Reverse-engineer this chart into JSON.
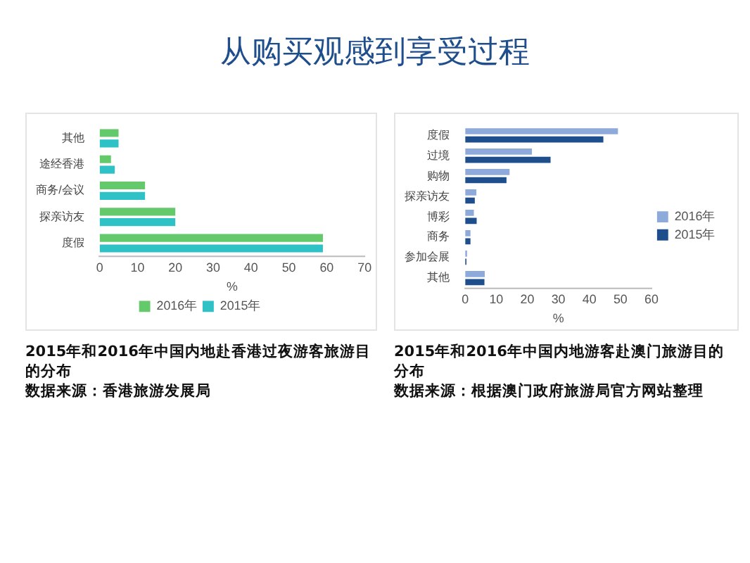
{
  "chart_data": [
    {
      "type": "bar",
      "orientation": "horizontal",
      "title": "从购买观感到享受过程",
      "subtitle": "2015年和2016年中国内地赴香港过夜游客旅游目的分布",
      "annotations": [
        "数据来源：香港旅游发展局"
      ],
      "xlabel": "%",
      "categories": [
        "其他",
        "途经香港",
        "商务/会议",
        "探亲访友",
        "度假"
      ],
      "series": [
        {
          "name": "2016年",
          "color": "#63c96a",
          "values": [
            5,
            3,
            12,
            20,
            59
          ]
        },
        {
          "name": "2015年",
          "color": "#2ec2c6",
          "values": [
            5,
            4,
            12,
            20,
            59
          ]
        }
      ],
      "xlim": [
        0,
        70
      ],
      "xticks": [
        0,
        10,
        20,
        30,
        40,
        50,
        60,
        70
      ],
      "grid": false,
      "legend": "bottom"
    },
    {
      "type": "bar",
      "orientation": "horizontal",
      "subtitle": "2015年和2016年中国内地游客赴澳门旅游目的分布",
      "annotations": [
        "数据来源：根据澳门政府旅游局官方网站整理"
      ],
      "xlabel": "%",
      "categories": [
        "度假",
        "过境",
        "购物",
        "探亲访友",
        "博彩",
        "商务",
        "参加会展",
        "其他"
      ],
      "series": [
        {
          "name": "2016年",
          "color": "#8eaadb",
          "values": [
            49.2,
            21.5,
            14.3,
            3.6,
            2.8,
            1.7,
            0.6,
            6.3
          ]
        },
        {
          "name": "2015年",
          "color": "#1f4e8c",
          "values": [
            44.5,
            27.5,
            13.3,
            3.1,
            3.7,
            1.7,
            0.4,
            6.2
          ]
        }
      ],
      "xlim": [
        0,
        60
      ],
      "xticks": [
        0,
        10,
        20,
        30,
        40,
        50,
        60
      ],
      "grid": false,
      "legend": "right"
    }
  ]
}
